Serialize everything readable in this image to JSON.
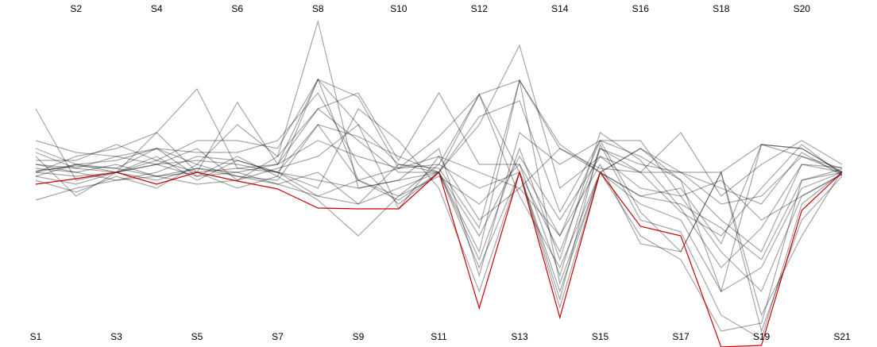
{
  "chart_data": {
    "type": "parallel",
    "categories": [
      "S1",
      "S2",
      "S3",
      "S4",
      "S5",
      "S6",
      "S7",
      "S8",
      "S9",
      "S10",
      "S11",
      "S12",
      "S13",
      "S14",
      "S15",
      "S16",
      "S17",
      "S18",
      "S19",
      "S20",
      "S21"
    ],
    "ylim": [
      -220,
      217
    ],
    "line_opacity": 0.35,
    "series": [
      {
        "color": "#000000",
        "values": [
          10,
          5,
          0,
          50,
          0,
          88,
          10,
          117,
          95,
          5,
          45,
          98,
          116,
          30,
          0,
          30,
          0,
          0,
          35,
          30,
          0
        ]
      },
      {
        "color": "#000000",
        "values": [
          0,
          -5,
          0,
          20,
          -10,
          15,
          0,
          -30,
          -40,
          10,
          0,
          -120,
          0,
          -150,
          0,
          -40,
          -60,
          -150,
          -120,
          -20,
          0
        ]
      },
      {
        "color": "#000000",
        "values": [
          40,
          25,
          20,
          30,
          10,
          60,
          20,
          80,
          40,
          0,
          0,
          70,
          90,
          -50,
          40,
          20,
          -10,
          -60,
          -100,
          10,
          0
        ]
      },
      {
        "color": "#000000",
        "values": [
          -5,
          10,
          5,
          -5,
          5,
          -5,
          -10,
          60,
          -10,
          -30,
          10,
          -20,
          0,
          -100,
          30,
          10,
          0,
          -40,
          -30,
          20,
          5
        ]
      },
      {
        "color": "#000000",
        "values": [
          20,
          -30,
          0,
          10,
          -5,
          0,
          10,
          40,
          20,
          5,
          20,
          -60,
          -20,
          -80,
          10,
          -90,
          -100,
          0,
          -200,
          -60,
          -5
        ]
      },
      {
        "color": "#000000",
        "values": [
          80,
          -10,
          0,
          10,
          30,
          -10,
          20,
          190,
          -20,
          -10,
          0,
          60,
          160,
          -20,
          20,
          0,
          50,
          -30,
          10,
          40,
          10
        ]
      },
      {
        "color": "#000000",
        "values": [
          0,
          20,
          30,
          50,
          105,
          5,
          10,
          80,
          100,
          15,
          100,
          10,
          10,
          -130,
          30,
          0,
          -50,
          -80,
          -20,
          35,
          -3
        ]
      },
      {
        "color": "#000000",
        "values": [
          5,
          0,
          -10,
          0,
          20,
          15,
          0,
          -10,
          -20,
          -10,
          30,
          -130,
          50,
          10,
          40,
          -50,
          -100,
          0,
          -180,
          -80,
          2
        ]
      },
      {
        "color": "#000000",
        "values": [
          15,
          15,
          35,
          15,
          40,
          40,
          30,
          117,
          60,
          10,
          5,
          -70,
          116,
          35,
          0,
          30,
          -10,
          -150,
          35,
          20,
          0
        ]
      },
      {
        "color": "#000000",
        "values": [
          -10,
          -25,
          -5,
          -20,
          10,
          -5,
          -15,
          -30,
          -10,
          -35,
          0,
          -80,
          20,
          -60,
          20,
          -20,
          -30,
          -100,
          -150,
          -30,
          -3
        ]
      },
      {
        "color": "#000000",
        "values": [
          30,
          10,
          15,
          30,
          25,
          25,
          40,
          100,
          10,
          -40,
          0,
          98,
          -30,
          -120,
          0,
          -30,
          -40,
          -70,
          -110,
          -10,
          4
        ]
      },
      {
        "color": "#000000",
        "values": [
          0,
          10,
          0,
          15,
          0,
          5,
          0,
          -20,
          80,
          40,
          -20,
          -150,
          0,
          -170,
          0,
          -80,
          -110,
          -200,
          -190,
          -10,
          0
        ]
      },
      {
        "color": "#000000",
        "values": [
          -35,
          -20,
          -10,
          -5,
          0,
          -20,
          -5,
          -35,
          -80,
          -30,
          -5,
          -40,
          10,
          -80,
          40,
          40,
          -30,
          -10,
          -60,
          -30,
          -2
        ]
      },
      {
        "color": "#000000",
        "values": [
          25,
          5,
          20,
          10,
          15,
          10,
          0,
          60,
          45,
          20,
          0,
          -110,
          30,
          -110,
          50,
          15,
          -45,
          -120,
          -70,
          10,
          6
        ]
      },
      {
        "color": "#000000",
        "values": [
          10,
          0,
          10,
          -5,
          -15,
          -10,
          5,
          20,
          60,
          -46,
          20,
          0,
          -20,
          30,
          5,
          0,
          0,
          -20,
          -40,
          25,
          -4
        ]
      },
      {
        "color": "#000000",
        "values": [
          2,
          8,
          5,
          30,
          -5,
          20,
          -5,
          117,
          -10,
          5,
          10,
          98,
          0,
          -160,
          35,
          -60,
          -75,
          -180,
          -210,
          -40,
          0
        ]
      },
      {
        "color": "#000000",
        "values": [
          -5,
          -15,
          0,
          -10,
          5,
          0,
          -15,
          0,
          -40,
          -20,
          0,
          -100,
          116,
          -140,
          0,
          -30,
          -20,
          -90,
          35,
          30,
          0
        ]
      },
      {
        "color": "#cc0000",
        "values": [
          -15,
          -8,
          0,
          -15,
          0,
          -11,
          -21,
          -45,
          -46,
          -46,
          0,
          -171,
          0,
          -183,
          0,
          -68,
          -80,
          -220,
          -218,
          -48,
          0
        ]
      }
    ]
  }
}
